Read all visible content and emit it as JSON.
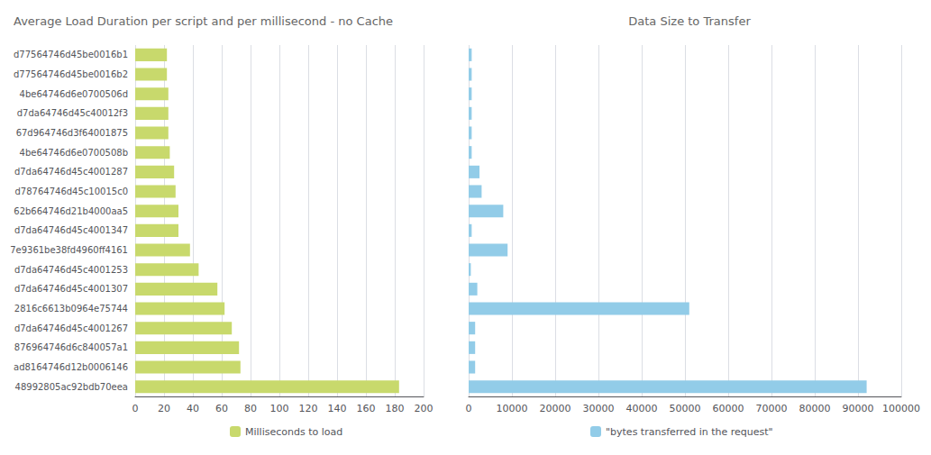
{
  "chart_data": [
    {
      "type": "bar",
      "orientation": "horizontal",
      "title": "Average Load Duration per script and per millisecond - no Cache",
      "categories": [
        "d77564746d45be0016b1",
        "d77564746d45be0016b2",
        "4be64746d6e0700506d",
        "d7da64746d45c40012f3",
        "67d964746d3f64001875",
        "4be64746d6e0700508b",
        "d7da64746d45c4001287",
        "d78764746d45c10015c0",
        "62b664746d21b4000aa5",
        "d7da64746d45c4001347",
        "7e9361be38fd4960ff4161",
        "d7da64746d45c4001253",
        "d7da64746d45c4001307",
        "2816c6613b0964e75744",
        "d7da64746d45c4001267",
        "876964746d6c840057a1",
        "ad8164746d12b0006146",
        "48992805ac92bdb70eea"
      ],
      "series": [
        {
          "name": "Milliseconds to load",
          "color": "#c8d96c",
          "values": [
            22,
            22,
            23,
            23,
            23,
            24,
            27,
            28,
            30,
            30,
            38,
            44,
            57,
            62,
            67,
            72,
            73,
            183
          ]
        }
      ],
      "xlim": [
        0,
        200
      ],
      "xticks": [
        0,
        20,
        40,
        60,
        80,
        100,
        120,
        140,
        160,
        180,
        200
      ],
      "grid": true,
      "legend": "bottom"
    },
    {
      "type": "bar",
      "orientation": "horizontal",
      "title": "Data Size to Transfer",
      "categories": [
        "d77564746d45be0016b1",
        "d77564746d45be0016b2",
        "4be64746d6e0700506d",
        "d7da64746d45c40012f3",
        "67d964746d3f64001875",
        "4be64746d6e0700508b",
        "d7da64746d45c4001287",
        "d78764746d45c10015c0",
        "62b664746d21b4000aa5",
        "d7da64746d45c4001347",
        "7e9361be38fd4960ff4161",
        "d7da64746d45c4001253",
        "d7da64746d45c4001307",
        "2816c6613b0964e75744",
        "d7da64746d45c4001267",
        "876964746d6c840057a1",
        "ad8164746d12b0006146",
        "48992805ac92bdb70eea"
      ],
      "series": [
        {
          "name": "\"bytes transferred in the request\"",
          "color": "#92cce8",
          "values": [
            700,
            700,
            700,
            700,
            700,
            700,
            2500,
            3000,
            8000,
            700,
            9000,
            500,
            2000,
            51000,
            1500,
            1500,
            1500,
            92000
          ]
        }
      ],
      "xlim": [
        0,
        100000
      ],
      "xticks": [
        0,
        10000,
        20000,
        30000,
        40000,
        50000,
        60000,
        70000,
        80000,
        90000,
        100000
      ],
      "grid": true,
      "legend": "bottom",
      "tick_labels": "x"
    }
  ]
}
